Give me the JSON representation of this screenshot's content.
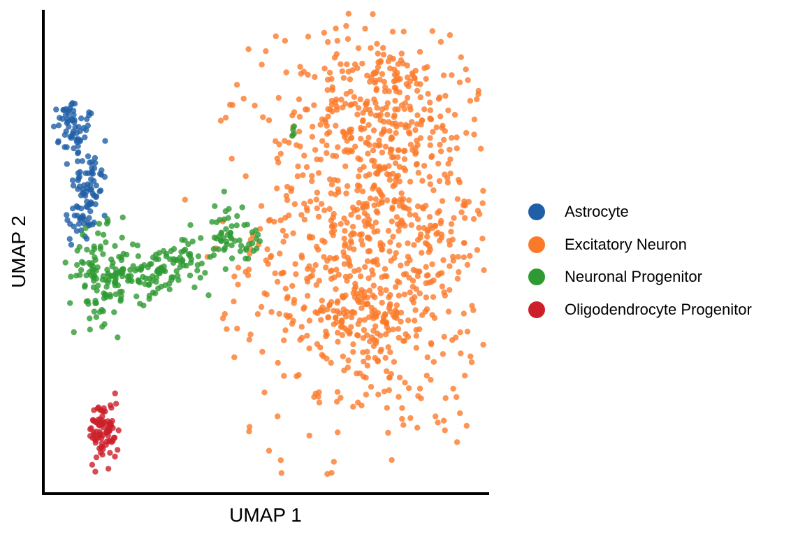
{
  "chart_data": {
    "type": "scatter",
    "title": "",
    "xlabel": "UMAP 1",
    "ylabel": "UMAP 2",
    "xlim": [
      -6,
      12
    ],
    "ylim": [
      -6,
      13
    ],
    "grid": false,
    "ticks_shown": false,
    "legend_position": "right",
    "series": [
      {
        "name": "Astrocyte",
        "color": "#1f5fa6",
        "clusters": [
          {
            "center": [
              -4.8,
              8.2
            ],
            "spread": [
              0.45,
              0.5
            ],
            "n": 45
          },
          {
            "center": [
              -4.2,
              6.3
            ],
            "spread": [
              0.35,
              0.55
            ],
            "n": 50
          },
          {
            "center": [
              -4.5,
              4.8
            ],
            "spread": [
              0.4,
              0.6
            ],
            "n": 40
          },
          {
            "center": [
              -5.0,
              9.0
            ],
            "spread": [
              0.25,
              0.25
            ],
            "n": 15
          }
        ]
      },
      {
        "name": "Excitatory Neuron",
        "color": "#fb7a2a",
        "clusters": [
          {
            "center": [
              7.5,
              4.5
            ],
            "spread": [
              2.5,
              4.2
            ],
            "n": 900
          },
          {
            "center": [
              7.5,
              9.0
            ],
            "spread": [
              1.3,
              1.2
            ],
            "n": 120
          },
          {
            "center": [
              6.5,
              1.0
            ],
            "spread": [
              1.5,
              0.8
            ],
            "n": 100
          }
        ]
      },
      {
        "name": "Neuronal Progenitor",
        "color": "#2e9a32",
        "clusters": [
          {
            "center": [
              -3.6,
              2.5
            ],
            "spread": [
              0.7,
              0.9
            ],
            "n": 120
          },
          {
            "center": [
              -1.8,
              2.6
            ],
            "spread": [
              0.8,
              0.5
            ],
            "n": 70
          },
          {
            "center": [
              -0.4,
              3.2
            ],
            "spread": [
              0.5,
              0.5
            ],
            "n": 40
          },
          {
            "center": [
              1.4,
              4.3
            ],
            "spread": [
              0.35,
              0.7
            ],
            "n": 45
          },
          {
            "center": [
              2.4,
              3.6
            ],
            "spread": [
              0.25,
              0.3
            ],
            "n": 12
          },
          {
            "center": [
              4.1,
              8.2
            ],
            "spread": [
              0.1,
              0.2
            ],
            "n": 4
          }
        ]
      },
      {
        "name": "Oligodendrocyte Progenitor",
        "color": "#cc1f2a",
        "clusters": [
          {
            "center": [
              -3.6,
              -3.6
            ],
            "spread": [
              0.3,
              0.6
            ],
            "n": 85
          }
        ]
      }
    ]
  }
}
